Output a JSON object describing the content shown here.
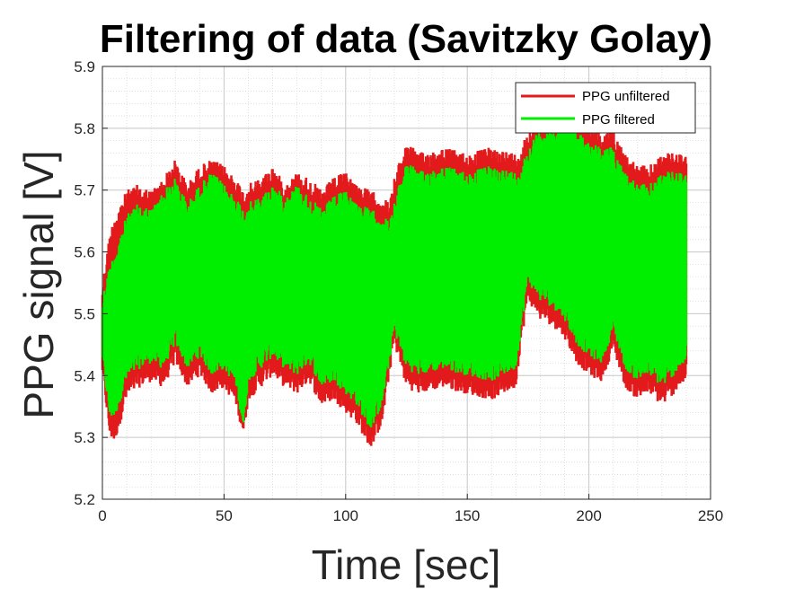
{
  "chart_data": {
    "type": "line",
    "title": "Filtering of data (Savitzky Golay)",
    "xlabel": "Time [sec]",
    "ylabel": "PPG signal [V]",
    "xlim": [
      0,
      250
    ],
    "ylim": [
      5.2,
      5.9
    ],
    "xticks": [
      0,
      50,
      100,
      150,
      200,
      250
    ],
    "yticks": [
      5.2,
      5.3,
      5.4,
      5.5,
      5.6,
      5.7,
      5.8,
      5.9
    ],
    "xtick_labels": [
      "0",
      "50",
      "100",
      "150",
      "200",
      "250"
    ],
    "ytick_labels": [
      "5.2",
      "5.3",
      "5.4",
      "5.5",
      "5.6",
      "5.7",
      "5.8",
      "5.9"
    ],
    "grid": true,
    "minor_grid": true,
    "legend_position": "top-right",
    "series": [
      {
        "name": "PPG unfiltered",
        "color": "#e31a1c",
        "envelope": {
          "t": [
            0,
            3,
            5,
            10,
            15,
            20,
            25,
            30,
            35,
            40,
            45,
            50,
            55,
            58,
            60,
            65,
            70,
            75,
            80,
            85,
            90,
            95,
            100,
            105,
            110,
            115,
            118,
            120,
            125,
            130,
            140,
            150,
            160,
            170,
            172,
            175,
            180,
            185,
            190,
            195,
            200,
            205,
            210,
            215,
            220,
            225,
            230,
            235,
            240
          ],
          "upper": [
            5.55,
            5.63,
            5.66,
            5.7,
            5.71,
            5.7,
            5.72,
            5.75,
            5.71,
            5.74,
            5.75,
            5.74,
            5.72,
            5.7,
            5.71,
            5.72,
            5.74,
            5.71,
            5.73,
            5.72,
            5.7,
            5.72,
            5.73,
            5.71,
            5.7,
            5.69,
            5.68,
            5.72,
            5.78,
            5.76,
            5.77,
            5.76,
            5.77,
            5.76,
            5.77,
            5.8,
            5.82,
            5.82,
            5.88,
            5.82,
            5.81,
            5.79,
            5.8,
            5.76,
            5.74,
            5.74,
            5.76,
            5.76,
            5.76
          ],
          "lower": [
            5.4,
            5.3,
            5.29,
            5.36,
            5.38,
            5.39,
            5.38,
            5.42,
            5.38,
            5.4,
            5.37,
            5.38,
            5.35,
            5.3,
            5.36,
            5.38,
            5.4,
            5.38,
            5.37,
            5.39,
            5.35,
            5.36,
            5.34,
            5.32,
            5.28,
            5.32,
            5.4,
            5.45,
            5.38,
            5.37,
            5.38,
            5.37,
            5.36,
            5.38,
            5.45,
            5.52,
            5.49,
            5.48,
            5.46,
            5.42,
            5.4,
            5.39,
            5.44,
            5.38,
            5.36,
            5.37,
            5.35,
            5.37,
            5.39
          ]
        }
      },
      {
        "name": "PPG filtered",
        "color": "#00ee00",
        "envelope": {
          "t": [
            0,
            3,
            5,
            10,
            15,
            20,
            25,
            30,
            35,
            40,
            45,
            50,
            55,
            58,
            60,
            65,
            70,
            75,
            80,
            85,
            90,
            95,
            100,
            105,
            110,
            115,
            118,
            120,
            125,
            130,
            140,
            150,
            160,
            170,
            172,
            175,
            180,
            185,
            190,
            195,
            200,
            205,
            210,
            215,
            220,
            225,
            230,
            235,
            240
          ],
          "upper": [
            5.53,
            5.58,
            5.6,
            5.66,
            5.68,
            5.67,
            5.7,
            5.72,
            5.68,
            5.71,
            5.73,
            5.71,
            5.69,
            5.67,
            5.68,
            5.69,
            5.71,
            5.69,
            5.71,
            5.69,
            5.67,
            5.69,
            5.7,
            5.68,
            5.67,
            5.66,
            5.65,
            5.68,
            5.75,
            5.73,
            5.74,
            5.73,
            5.74,
            5.73,
            5.74,
            5.77,
            5.8,
            5.8,
            5.82,
            5.8,
            5.78,
            5.77,
            5.77,
            5.73,
            5.71,
            5.71,
            5.73,
            5.73,
            5.73
          ],
          "lower": [
            5.42,
            5.33,
            5.33,
            5.39,
            5.41,
            5.42,
            5.41,
            5.45,
            5.41,
            5.43,
            5.4,
            5.41,
            5.38,
            5.31,
            5.39,
            5.41,
            5.43,
            5.41,
            5.4,
            5.42,
            5.38,
            5.39,
            5.37,
            5.35,
            5.31,
            5.35,
            5.42,
            5.47,
            5.41,
            5.4,
            5.41,
            5.4,
            5.39,
            5.41,
            5.47,
            5.55,
            5.52,
            5.51,
            5.49,
            5.45,
            5.43,
            5.42,
            5.47,
            5.41,
            5.39,
            5.4,
            5.38,
            5.4,
            5.42
          ]
        }
      }
    ]
  }
}
